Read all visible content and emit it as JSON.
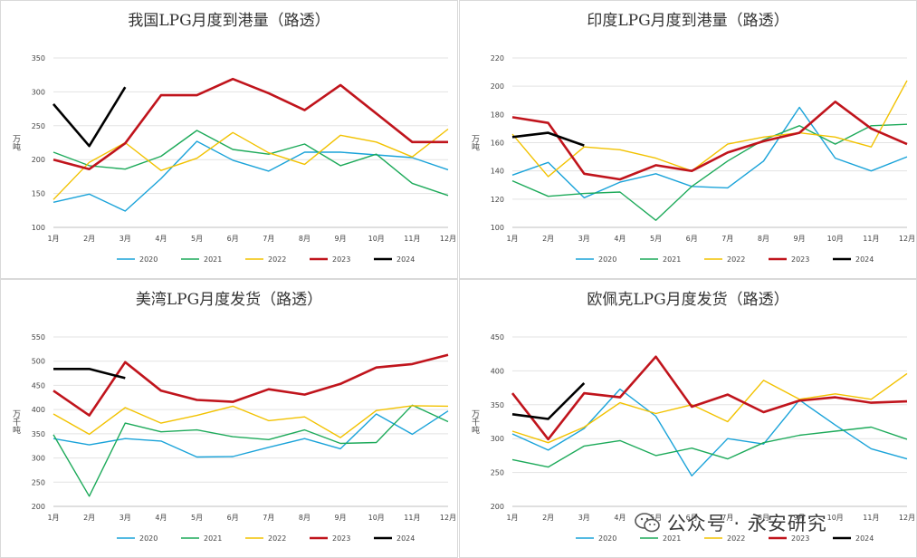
{
  "months": [
    "1月",
    "2月",
    "3月",
    "4月",
    "5月",
    "6月",
    "7月",
    "8月",
    "9月",
    "10月",
    "11月",
    "12月"
  ],
  "series_colors": {
    "2020": "#1aa3d9",
    "2021": "#1daa5a",
    "2022": "#f2c200",
    "2023": "#c0141c",
    "2024": "#000000"
  },
  "watermark": {
    "text": "公众号 · 永安研究",
    "icon": "wechat-icon"
  },
  "chart_data": [
    {
      "type": "line",
      "title": "我国LPG月度到港量（路透）",
      "ylabel": "万吨",
      "ylim": [
        100,
        350
      ],
      "yticks": [
        100,
        150,
        200,
        250,
        300,
        350
      ],
      "series": [
        {
          "name": "2020",
          "values": [
            137,
            149,
            124,
            172,
            227,
            199,
            183,
            211,
            211,
            207,
            203,
            185
          ]
        },
        {
          "name": "2021",
          "values": [
            211,
            191,
            186,
            205,
            243,
            215,
            208,
            223,
            191,
            208,
            165,
            147
          ]
        },
        {
          "name": "2022",
          "values": [
            141,
            196,
            225,
            184,
            202,
            240,
            210,
            193,
            236,
            226,
            204,
            245
          ]
        },
        {
          "name": "2023",
          "values": [
            200,
            186,
            224,
            295,
            295,
            319,
            298,
            273,
            310,
            268,
            226,
            226
          ]
        },
        {
          "name": "2024",
          "values": [
            282,
            220,
            307
          ]
        }
      ]
    },
    {
      "type": "line",
      "title": "印度LPG月度到港量（路透）",
      "ylabel": "万吨",
      "ylim": [
        100,
        220
      ],
      "yticks": [
        100,
        120,
        140,
        160,
        180,
        200,
        220
      ],
      "series": [
        {
          "name": "2020",
          "values": [
            137,
            146,
            121,
            132,
            138,
            129,
            128,
            147,
            185,
            149,
            140,
            150
          ]
        },
        {
          "name": "2021",
          "values": [
            133,
            122,
            124,
            125,
            105,
            129,
            147,
            162,
            172,
            159,
            172,
            173
          ]
        },
        {
          "name": "2022",
          "values": [
            166,
            136,
            157,
            155,
            149,
            140,
            159,
            164,
            167,
            164,
            157,
            204
          ]
        },
        {
          "name": "2023",
          "values": [
            178,
            174,
            138,
            134,
            144,
            140,
            153,
            161,
            167,
            189,
            170,
            159
          ]
        },
        {
          "name": "2024",
          "values": [
            164,
            167,
            158
          ]
        }
      ]
    },
    {
      "type": "line",
      "title": "美湾LPG月度发货（路透）",
      "ylabel": "万千吨",
      "ylim": [
        200,
        550
      ],
      "yticks": [
        200,
        250,
        300,
        350,
        400,
        450,
        500,
        550
      ],
      "series": [
        {
          "name": "2020",
          "values": [
            340,
            327,
            340,
            335,
            302,
            303,
            322,
            340,
            319,
            391,
            349,
            397
          ]
        },
        {
          "name": "2021",
          "values": [
            348,
            221,
            372,
            354,
            358,
            344,
            338,
            358,
            330,
            332,
            409,
            375
          ]
        },
        {
          "name": "2022",
          "values": [
            391,
            349,
            404,
            372,
            388,
            407,
            377,
            385,
            342,
            398,
            408,
            407
          ]
        },
        {
          "name": "2023",
          "values": [
            439,
            388,
            498,
            439,
            420,
            416,
            442,
            431,
            453,
            487,
            494,
            513
          ]
        },
        {
          "name": "2024",
          "values": [
            484,
            484,
            465
          ]
        }
      ]
    },
    {
      "type": "line",
      "title": "欧佩克LPG月度发货（路透）",
      "ylabel": "万千吨",
      "ylim": [
        200,
        450
      ],
      "yticks": [
        200,
        250,
        300,
        350,
        400,
        450
      ],
      "series": [
        {
          "name": "2020",
          "values": [
            307,
            283,
            315,
            373,
            333,
            245,
            300,
            292,
            357,
            320,
            285,
            270
          ]
        },
        {
          "name": "2021",
          "values": [
            269,
            258,
            289,
            297,
            275,
            286,
            270,
            294,
            305,
            311,
            317,
            299
          ]
        },
        {
          "name": "2022",
          "values": [
            311,
            294,
            317,
            353,
            337,
            350,
            325,
            386,
            358,
            366,
            358,
            396
          ]
        },
        {
          "name": "2023",
          "values": [
            367,
            299,
            367,
            361,
            421,
            347,
            365,
            339,
            356,
            361,
            353,
            355
          ]
        },
        {
          "name": "2024",
          "values": [
            336,
            329,
            382
          ]
        }
      ]
    }
  ]
}
